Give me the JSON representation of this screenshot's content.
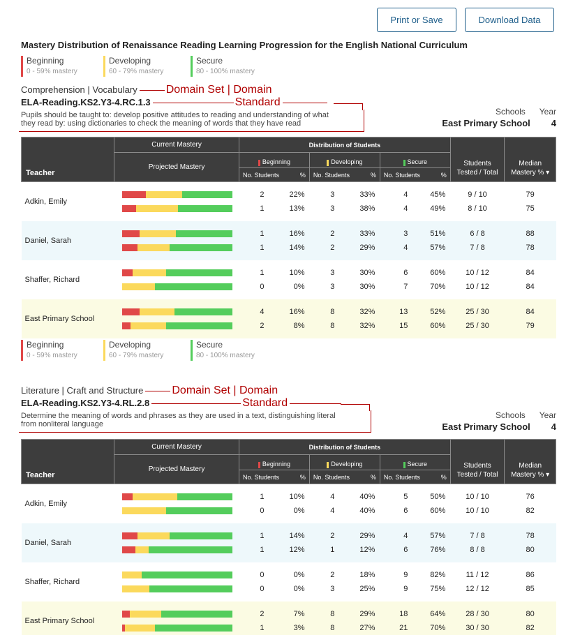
{
  "toolbar": {
    "print_label": "Print or Save",
    "download_label": "Download Data"
  },
  "title": "Mastery Distribution of Renaissance Reading Learning Progression for the English National Curriculum",
  "colors": {
    "beginning": "#e04848",
    "developing": "#fbd95c",
    "secure": "#54cd5c",
    "accent": "#1f5f8b",
    "annotation": "#b00000"
  },
  "legend": [
    {
      "label": "Beginning",
      "range": "0 - 59% mastery"
    },
    {
      "label": "Developing",
      "range": "60 - 79% mastery"
    },
    {
      "label": "Secure",
      "range": "80 - 100% mastery"
    }
  ],
  "annotations": {
    "domain": "Domain Set | Domain",
    "standard": "Standard"
  },
  "table_headers": {
    "teacher": "Teacher",
    "distribution": "Distribution of Students",
    "current": "Current Mastery",
    "projected": "Projected Mastery",
    "beginning": "Beginning",
    "developing": "Developing",
    "secure": "Secure",
    "no_students": "No. Students",
    "pct": "%",
    "tested_1": "Students",
    "tested_2": "Tested / Total",
    "median_1": "Median",
    "median_2": "Mastery %",
    "sort_icon": "▾"
  },
  "schools_label": "Schools",
  "year_label": "Year",
  "sections": [
    {
      "domain": "Comprehension | Vocabulary",
      "standard": "ELA-Reading.KS2.Y3-4.RC.1.3",
      "description_1": "Pupils should be taught to: develop positive attitudes to reading and understanding of what",
      "description_2": "they read by: using dictionaries to check the meaning of words that they have read",
      "school": "East Primary School",
      "year": "4",
      "rows": [
        {
          "teacher": "Adkin, Emily",
          "style": "white",
          "lines": [
            {
              "b": "2",
              "bp": "22%",
              "d": "3",
              "dp": "33%",
              "s": "4",
              "sp": "45%",
              "tested": "9 / 10",
              "median": "79",
              "fb": 22,
              "fd": 33,
              "fs": 45
            },
            {
              "b": "1",
              "bp": "13%",
              "d": "3",
              "dp": "38%",
              "s": "4",
              "sp": "49%",
              "tested": "8 / 10",
              "median": "75",
              "fb": 13,
              "fd": 38,
              "fs": 49
            }
          ]
        },
        {
          "teacher": "Daniel, Sarah",
          "style": "blue",
          "lines": [
            {
              "b": "1",
              "bp": "16%",
              "d": "2",
              "dp": "33%",
              "s": "3",
              "sp": "51%",
              "tested": "6 / 8",
              "median": "88",
              "fb": 16,
              "fd": 33,
              "fs": 51
            },
            {
              "b": "1",
              "bp": "14%",
              "d": "2",
              "dp": "29%",
              "s": "4",
              "sp": "57%",
              "tested": "7 / 8",
              "median": "78",
              "fb": 14,
              "fd": 29,
              "fs": 57
            }
          ]
        },
        {
          "teacher": "Shaffer, Richard",
          "style": "white",
          "lines": [
            {
              "b": "1",
              "bp": "10%",
              "d": "3",
              "dp": "30%",
              "s": "6",
              "sp": "60%",
              "tested": "10 / 12",
              "median": "84",
              "fb": 10,
              "fd": 30,
              "fs": 60
            },
            {
              "b": "0",
              "bp": "0%",
              "d": "3",
              "dp": "30%",
              "s": "7",
              "sp": "70%",
              "tested": "10 / 12",
              "median": "84",
              "fb": 0,
              "fd": 30,
              "fs": 70
            }
          ]
        },
        {
          "teacher": "East Primary School",
          "style": "yellow",
          "lines": [
            {
              "b": "4",
              "bp": "16%",
              "d": "8",
              "dp": "32%",
              "s": "13",
              "sp": "52%",
              "tested": "25 / 30",
              "median": "84",
              "fb": 16,
              "fd": 32,
              "fs": 52
            },
            {
              "b": "2",
              "bp": "8%",
              "d": "8",
              "dp": "32%",
              "s": "15",
              "sp": "60%",
              "tested": "25 / 30",
              "median": "79",
              "fb": 8,
              "fd": 32,
              "fs": 60
            }
          ]
        }
      ]
    },
    {
      "domain": "Literature | Craft and Structure",
      "standard": "ELA-Reading.KS2.Y3-4.RL.2.8",
      "description_1": "Determine the meaning of words and phrases as they are used in a text, distinguishing literal",
      "description_2": "from nonliteral language",
      "school": "East Primary School",
      "year": "4",
      "rows": [
        {
          "teacher": "Adkin, Emily",
          "style": "white",
          "lines": [
            {
              "b": "1",
              "bp": "10%",
              "d": "4",
              "dp": "40%",
              "s": "5",
              "sp": "50%",
              "tested": "10 / 10",
              "median": "76",
              "fb": 10,
              "fd": 40,
              "fs": 50
            },
            {
              "b": "0",
              "bp": "0%",
              "d": "4",
              "dp": "40%",
              "s": "6",
              "sp": "60%",
              "tested": "10 / 10",
              "median": "82",
              "fb": 0,
              "fd": 40,
              "fs": 60
            }
          ]
        },
        {
          "teacher": "Daniel, Sarah",
          "style": "blue",
          "lines": [
            {
              "b": "1",
              "bp": "14%",
              "d": "2",
              "dp": "29%",
              "s": "4",
              "sp": "57%",
              "tested": "7 / 8",
              "median": "78",
              "fb": 14,
              "fd": 29,
              "fs": 57
            },
            {
              "b": "1",
              "bp": "12%",
              "d": "1",
              "dp": "12%",
              "s": "6",
              "sp": "76%",
              "tested": "8 / 8",
              "median": "80",
              "fb": 12,
              "fd": 12,
              "fs": 76
            }
          ]
        },
        {
          "teacher": "Shaffer, Richard",
          "style": "white",
          "lines": [
            {
              "b": "0",
              "bp": "0%",
              "d": "2",
              "dp": "18%",
              "s": "9",
              "sp": "82%",
              "tested": "11 / 12",
              "median": "86",
              "fb": 0,
              "fd": 18,
              "fs": 82
            },
            {
              "b": "0",
              "bp": "0%",
              "d": "3",
              "dp": "25%",
              "s": "9",
              "sp": "75%",
              "tested": "12 / 12",
              "median": "85",
              "fb": 0,
              "fd": 25,
              "fs": 75
            }
          ]
        },
        {
          "teacher": "East Primary School",
          "style": "yellow",
          "lines": [
            {
              "b": "2",
              "bp": "7%",
              "d": "8",
              "dp": "29%",
              "s": "18",
              "sp": "64%",
              "tested": "28 / 30",
              "median": "80",
              "fb": 7,
              "fd": 29,
              "fs": 64
            },
            {
              "b": "1",
              "bp": "3%",
              "d": "8",
              "dp": "27%",
              "s": "21",
              "sp": "70%",
              "tested": "30 / 30",
              "median": "82",
              "fb": 3,
              "fd": 27,
              "fs": 70
            }
          ]
        }
      ]
    }
  ]
}
